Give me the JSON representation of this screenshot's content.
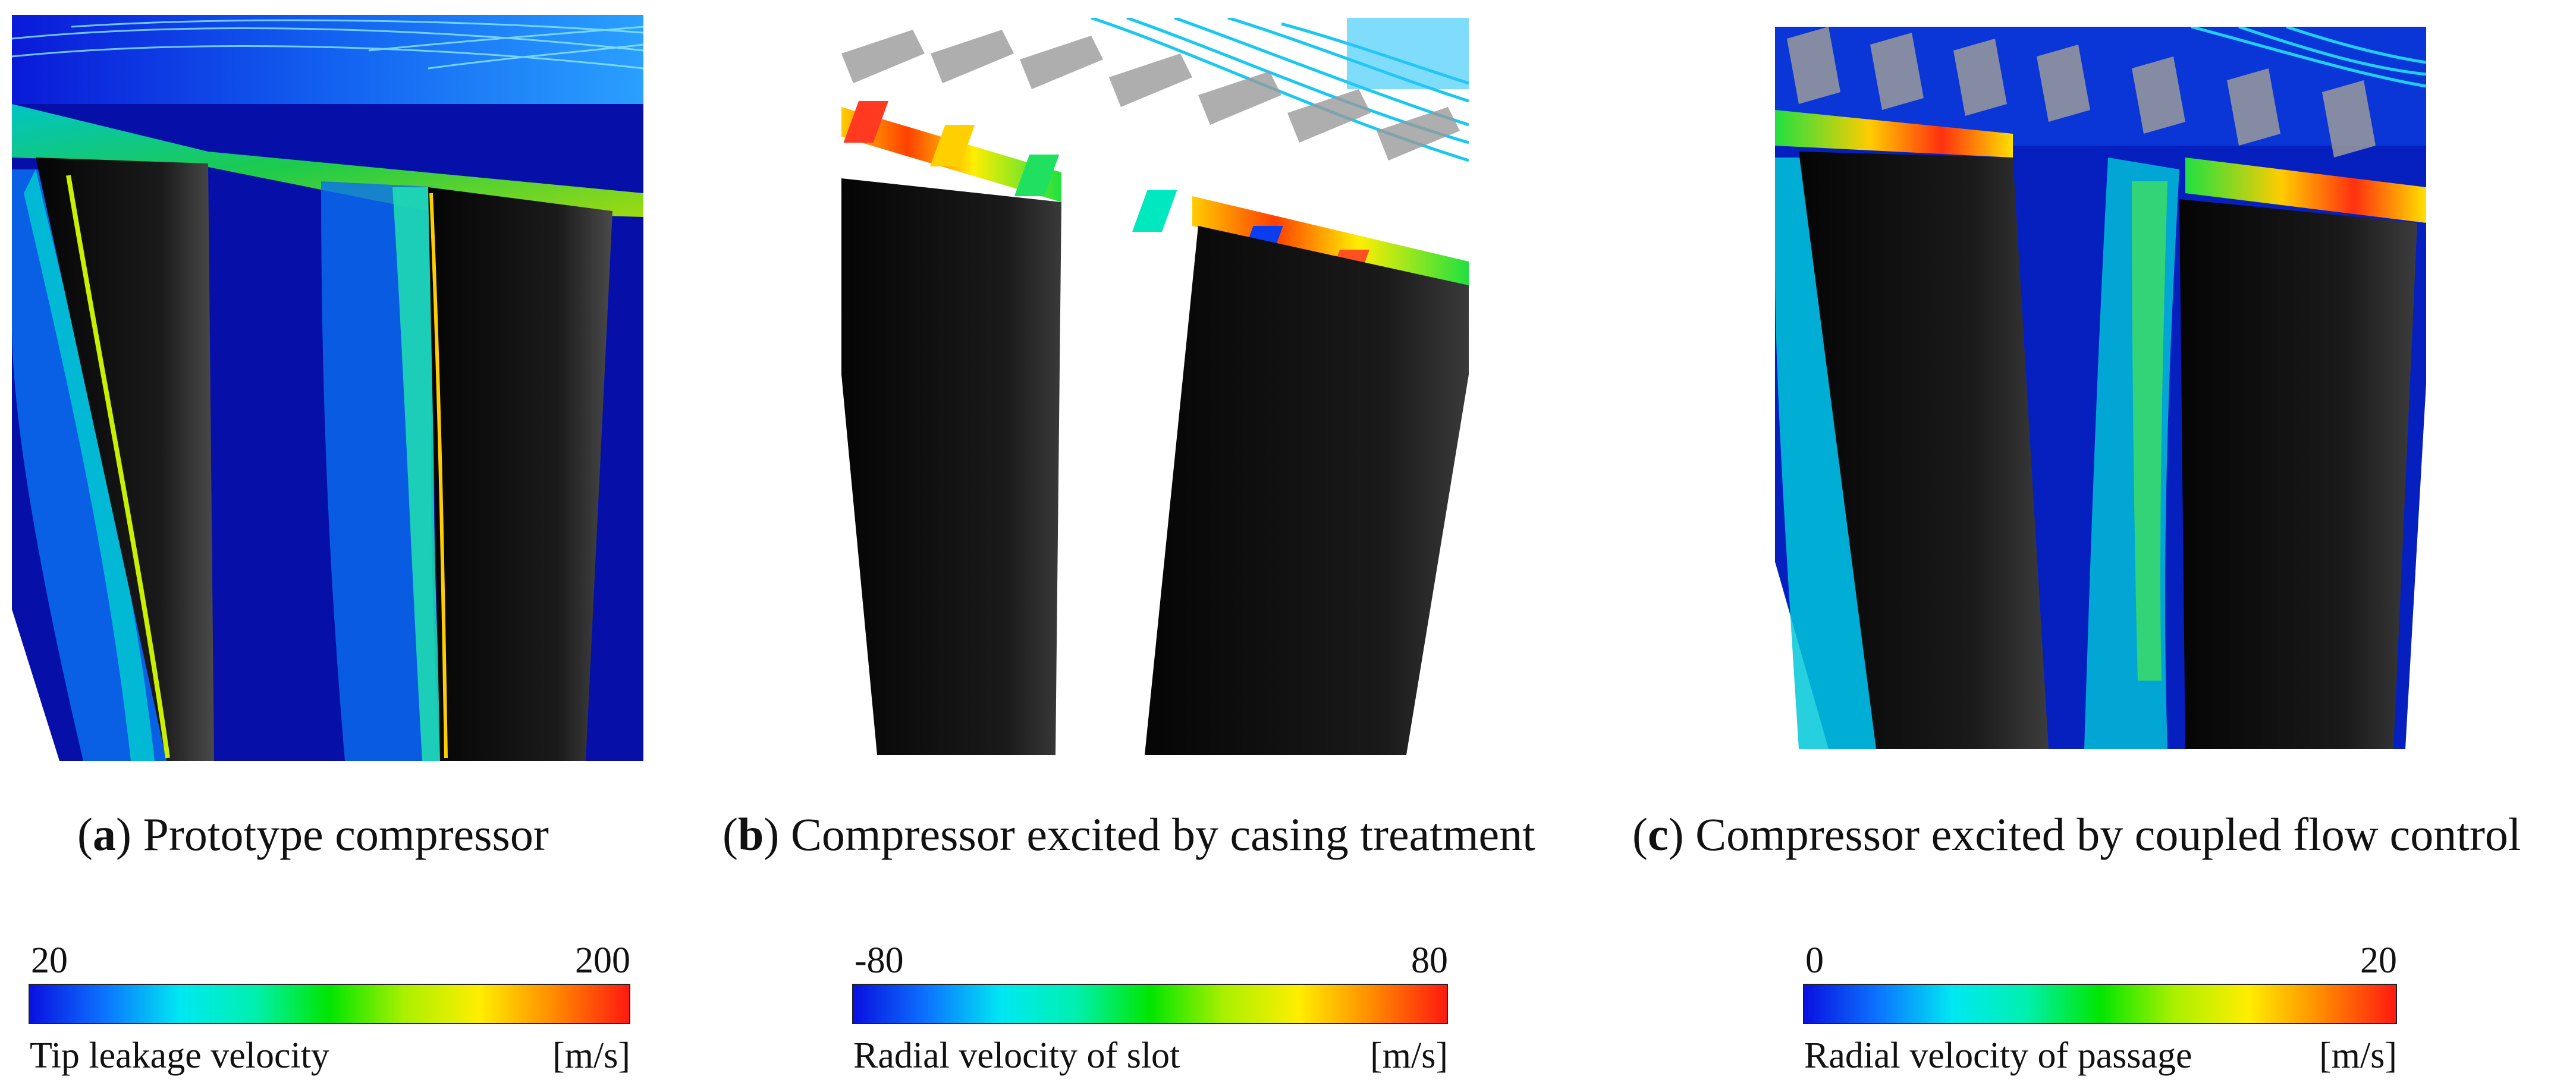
{
  "panels": [
    {
      "label": "a",
      "caption": "Prototype compressor",
      "legend": {
        "min": "20",
        "max": "200",
        "title": "Tip leakage velocity",
        "unit": "[m/s]"
      }
    },
    {
      "label": "b",
      "caption": "Compressor excited by casing treatment",
      "legend": {
        "min": "-80",
        "max": "80",
        "title": "Radial velocity of slot",
        "unit": "[m/s]"
      }
    },
    {
      "label": "c",
      "caption": "Compressor excited by coupled flow control",
      "legend": {
        "min": "0",
        "max": "20",
        "title": "Radial velocity of passage",
        "unit": "[m/s]"
      }
    }
  ],
  "colormap": [
    "#0a10e0",
    "#0b74ff",
    "#00e8f2",
    "#00f0b0",
    "#00e600",
    "#aaf000",
    "#ffee00",
    "#ff8a00",
    "#ff1a10"
  ]
}
